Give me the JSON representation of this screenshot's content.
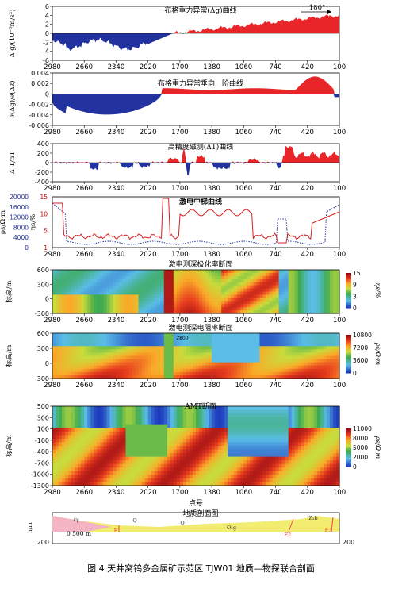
{
  "x_ticks": [
    "2980",
    "2660",
    "2340",
    "2020",
    "1700",
    "1380",
    "1060",
    "740",
    "420",
    "100"
  ],
  "panel1": {
    "title": "布格重力异常(Δg)曲线",
    "ylabel": "Δ g/(10⁻⁵m/s²)",
    "yticks": [
      "6",
      "4",
      "2",
      "0",
      "-2",
      "-4",
      "-6"
    ],
    "dir_label": "180°"
  },
  "panel2": {
    "title": "布格重力异常垂向一阶曲线",
    "ylabel": "∂(Δg)/∂(Δz)",
    "yticks": [
      "0.004",
      "0.002",
      "0",
      "-0.002",
      "-0.004",
      "-0.006"
    ]
  },
  "panel3": {
    "title": "高精度磁测(ΔT)曲线",
    "ylabel": "Δ T/nT",
    "yticks": [
      "400",
      "200",
      "0",
      "-200",
      "-400"
    ]
  },
  "panel4": {
    "title": "激电中梯曲线",
    "ylabel_rho": "ρs/Ω·m",
    "ylabel_eta": "ηs/%",
    "yticks_rho": [
      "20000",
      "16000",
      "12000",
      "8000",
      "4000",
      "0"
    ],
    "yticks_eta": [
      "15",
      "10",
      "5",
      "1"
    ]
  },
  "panel5": {
    "title": "激电测深极化率断面",
    "ylabel": "标高/m",
    "yticks": [
      "600",
      "300",
      "0",
      "-300"
    ],
    "legend_ticks": [
      "15",
      "9",
      "3",
      "0"
    ],
    "legend_label": "ηs/%"
  },
  "panel6": {
    "title": "激电测深电阻率断面",
    "ylabel": "标高/m",
    "yticks": [
      "600",
      "300",
      "0",
      "-300"
    ],
    "legend_ticks": [
      "10800",
      "7200",
      "3600",
      "0"
    ],
    "legend_label": "ρs/Ω·m",
    "contour_label": "2800"
  },
  "panel7": {
    "title": "AMT断面",
    "ylabel": "标高/m",
    "yticks": [
      "500",
      "300",
      "100",
      "-100",
      "-400",
      "-700",
      "-1000",
      "-1300"
    ],
    "legend_ticks": [
      "11000",
      "8000",
      "5000",
      "2000",
      "0"
    ],
    "legend_label": "ρs/Ω·m",
    "xlabel": "点号"
  },
  "panel8": {
    "title": "地质剖面图",
    "ylabel": "h/m",
    "scale_label": "0 500 m",
    "left_tick": "200",
    "right_tick": "200",
    "units": [
      "Q",
      "Q",
      "O₂g",
      "Z₂b",
      "F1",
      "F2",
      "F3",
      "εγ"
    ]
  },
  "caption": "图 4   天井窝钨多金属矿示范区 TJW01 地质—物探联合剖面",
  "colors": {
    "positive": "#e8262a",
    "negative": "#2233a0"
  }
}
